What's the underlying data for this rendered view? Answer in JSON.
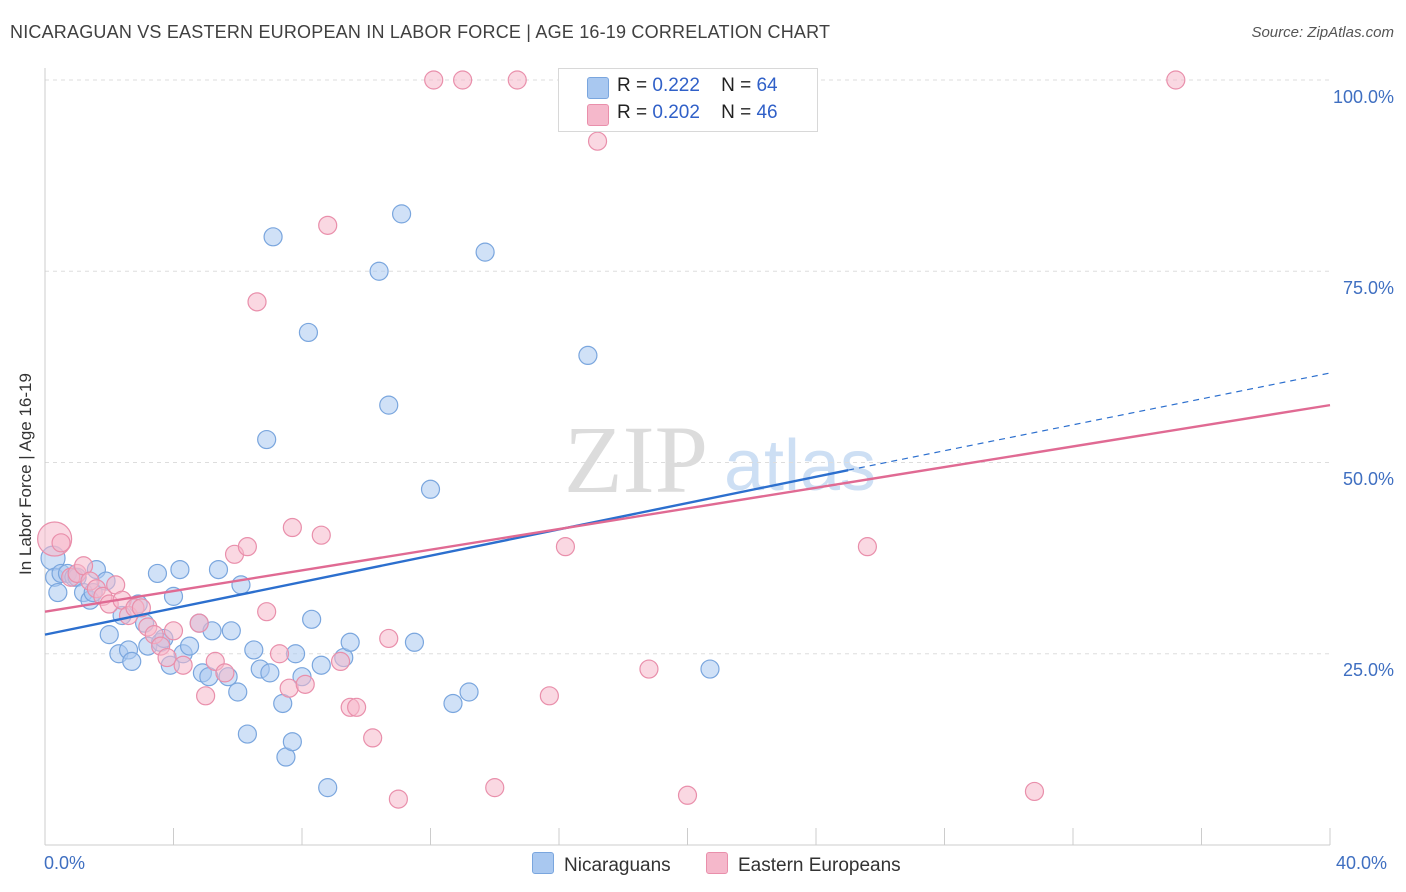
{
  "title": "NICARAGUAN VS EASTERN EUROPEAN IN LABOR FORCE | AGE 16-19 CORRELATION CHART",
  "source": "Source: ZipAtlas.com",
  "watermark": {
    "zip": "ZIP",
    "atlas": "atlas"
  },
  "legend": {
    "rows": [
      {
        "r_label": "R =",
        "r_value": "0.222",
        "n_label": "N =",
        "n_value": "64"
      },
      {
        "r_label": "R =",
        "r_value": "0.202",
        "n_label": "N =",
        "n_value": "46"
      }
    ]
  },
  "bottom_legend": {
    "series1": "Nicaraguans",
    "series2": "Eastern Europeans"
  },
  "colors": {
    "blue_fill": "#a9c8f0",
    "blue_stroke": "#7aa6de",
    "blue_line": "#2c6fce",
    "pink_fill": "#f5b8cb",
    "pink_stroke": "#e98fab",
    "pink_line": "#e06a93",
    "grid": "#dddddd",
    "tick_label": "#3f6fc1"
  },
  "chart_data": {
    "type": "scatter",
    "title": "NICARAGUAN VS EASTERN EUROPEAN IN LABOR FORCE | AGE 16-19 CORRELATION CHART",
    "xlabel": "",
    "ylabel": "In Labor Force | Age 16-19",
    "xlim": [
      0,
      40
    ],
    "ylim": [
      0,
      102
    ],
    "x_tick_labels": [
      "0.0%",
      "40.0%"
    ],
    "y_tick_labels": [
      "25.0%",
      "50.0%",
      "75.0%",
      "100.0%"
    ],
    "y_ticks": [
      25,
      50,
      75,
      100
    ],
    "grid": true,
    "legend_placement": "top-center",
    "series": [
      {
        "name": "Nicaraguans",
        "r": 0.222,
        "n": 64,
        "trend": {
          "x": [
            0,
            25
          ],
          "y": [
            27.5,
            49.0
          ],
          "dashed_to": [
            40,
            61.7
          ]
        },
        "points": [
          [
            0.25,
            37.5,
            2
          ],
          [
            0.3,
            35.0,
            1
          ],
          [
            0.4,
            33.0,
            1
          ],
          [
            0.5,
            35.5,
            1
          ],
          [
            0.7,
            35.5,
            1
          ],
          [
            0.9,
            35.0,
            1
          ],
          [
            1.0,
            35.0,
            1
          ],
          [
            1.2,
            33.0,
            1
          ],
          [
            1.4,
            32.0,
            1
          ],
          [
            1.5,
            33.0,
            1
          ],
          [
            1.6,
            36.0,
            1
          ],
          [
            1.9,
            34.5,
            1
          ],
          [
            2.0,
            27.5,
            1
          ],
          [
            2.3,
            25.0,
            1
          ],
          [
            2.4,
            30.0,
            1
          ],
          [
            2.6,
            25.5,
            1
          ],
          [
            2.7,
            24.0,
            1
          ],
          [
            2.9,
            31.5,
            1
          ],
          [
            3.1,
            29.0,
            1
          ],
          [
            3.2,
            26.0,
            1
          ],
          [
            3.5,
            35.5,
            1
          ],
          [
            3.6,
            26.5,
            1
          ],
          [
            3.7,
            27.0,
            1
          ],
          [
            3.9,
            23.5,
            1
          ],
          [
            4.0,
            32.5,
            1
          ],
          [
            4.2,
            36.0,
            1
          ],
          [
            4.3,
            25.0,
            1
          ],
          [
            4.5,
            26.0,
            1
          ],
          [
            4.8,
            29.0,
            1
          ],
          [
            4.9,
            22.5,
            1
          ],
          [
            5.1,
            22.0,
            1
          ],
          [
            5.2,
            28.0,
            1
          ],
          [
            5.4,
            36.0,
            1
          ],
          [
            5.7,
            22.0,
            1
          ],
          [
            5.8,
            28.0,
            1
          ],
          [
            6.0,
            20.0,
            1
          ],
          [
            6.1,
            34.0,
            1
          ],
          [
            6.3,
            14.5,
            1
          ],
          [
            6.5,
            25.5,
            1
          ],
          [
            6.7,
            23.0,
            1
          ],
          [
            6.9,
            53.0,
            1
          ],
          [
            7.0,
            22.5,
            1
          ],
          [
            7.1,
            79.5,
            1
          ],
          [
            7.4,
            18.5,
            1
          ],
          [
            7.5,
            11.5,
            1
          ],
          [
            7.7,
            13.5,
            1
          ],
          [
            7.8,
            25.0,
            1
          ],
          [
            8.0,
            22.0,
            1
          ],
          [
            8.2,
            67.0,
            1
          ],
          [
            8.3,
            29.5,
            1
          ],
          [
            8.6,
            23.5,
            1
          ],
          [
            8.8,
            7.5,
            1
          ],
          [
            9.3,
            24.5,
            1
          ],
          [
            9.5,
            26.5,
            1
          ],
          [
            10.4,
            75.0,
            1
          ],
          [
            10.7,
            57.5,
            1
          ],
          [
            11.1,
            82.5,
            1
          ],
          [
            11.5,
            26.5,
            1
          ],
          [
            12.0,
            46.5,
            1
          ],
          [
            12.7,
            18.5,
            1
          ],
          [
            13.2,
            20.0,
            1
          ],
          [
            13.7,
            77.5,
            1
          ],
          [
            16.9,
            64.0,
            1
          ],
          [
            20.7,
            23.0,
            1
          ]
        ]
      },
      {
        "name": "Eastern Europeans",
        "r": 0.202,
        "n": 46,
        "trend": {
          "x": [
            0,
            40
          ],
          "y": [
            30.5,
            57.5
          ]
        },
        "points": [
          [
            0.3,
            40.0,
            3
          ],
          [
            0.5,
            39.5,
            1
          ],
          [
            0.8,
            35.0,
            1
          ],
          [
            1.0,
            35.5,
            1
          ],
          [
            1.2,
            36.5,
            1
          ],
          [
            1.4,
            34.5,
            1
          ],
          [
            1.6,
            33.5,
            1
          ],
          [
            1.8,
            32.5,
            1
          ],
          [
            2.0,
            31.5,
            1
          ],
          [
            2.2,
            34.0,
            1
          ],
          [
            2.4,
            32.0,
            1
          ],
          [
            2.6,
            30.0,
            1
          ],
          [
            2.8,
            31.0,
            1
          ],
          [
            3.0,
            31.0,
            1
          ],
          [
            3.2,
            28.5,
            1
          ],
          [
            3.4,
            27.5,
            1
          ],
          [
            3.6,
            26.0,
            1
          ],
          [
            3.8,
            24.5,
            1
          ],
          [
            4.0,
            28.0,
            1
          ],
          [
            4.3,
            23.5,
            1
          ],
          [
            4.8,
            29.0,
            1
          ],
          [
            5.0,
            19.5,
            1
          ],
          [
            5.3,
            24.0,
            1
          ],
          [
            5.6,
            22.5,
            1
          ],
          [
            5.9,
            38.0,
            1
          ],
          [
            6.3,
            39.0,
            1
          ],
          [
            6.6,
            71.0,
            1
          ],
          [
            6.9,
            30.5,
            1
          ],
          [
            7.3,
            25.0,
            1
          ],
          [
            7.6,
            20.5,
            1
          ],
          [
            7.7,
            41.5,
            1
          ],
          [
            8.1,
            21.0,
            1
          ],
          [
            8.6,
            40.5,
            1
          ],
          [
            8.8,
            81.0,
            1
          ],
          [
            9.2,
            24.0,
            1
          ],
          [
            9.5,
            18.0,
            1
          ],
          [
            9.7,
            18.0,
            1
          ],
          [
            10.2,
            14.0,
            1
          ],
          [
            10.7,
            27.0,
            1
          ],
          [
            11.0,
            6.0,
            1
          ],
          [
            12.1,
            100.0,
            1
          ],
          [
            13.0,
            100.0,
            1
          ],
          [
            14.0,
            7.5,
            1
          ],
          [
            14.7,
            100.0,
            1
          ],
          [
            15.7,
            19.5,
            1
          ],
          [
            16.2,
            39.0,
            1
          ],
          [
            17.2,
            92.0,
            1
          ],
          [
            18.8,
            23.0,
            1
          ],
          [
            20.0,
            6.5,
            1
          ],
          [
            25.6,
            39.0,
            1
          ],
          [
            30.8,
            7.0,
            1
          ],
          [
            35.2,
            100.0,
            1
          ]
        ]
      }
    ]
  }
}
